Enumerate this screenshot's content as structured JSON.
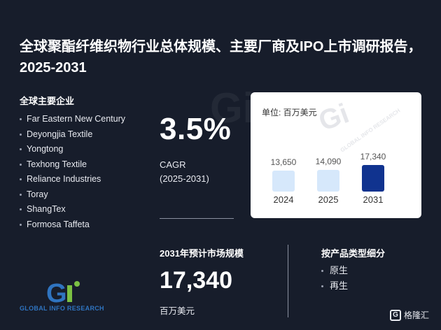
{
  "title": "全球聚酯纤维织物行业总体规模、主要厂商及IPO上市调研报告，2025-2031",
  "companies": {
    "heading": "全球主要企业",
    "items": [
      "Far Eastern New Century",
      "Deyongjia Textile",
      "Yongtong",
      "Texhong Textile",
      "Reliance Industries",
      "Toray",
      "ShangTex",
      "Formosa Taffeta"
    ]
  },
  "cagr": {
    "value": "3.5%",
    "label": "CAGR",
    "period": "(2025-2031)"
  },
  "chart": {
    "unit": "单位: 百万美元",
    "watermark": "GLOBAL INFO RESEARCH"
  },
  "chart_data": {
    "type": "bar",
    "categories": [
      "2024",
      "2025",
      "2031"
    ],
    "values": [
      13650,
      14090,
      17340
    ],
    "value_labels": [
      "13,650",
      "14,090",
      "17,340"
    ],
    "colors": [
      "#d6e8fb",
      "#d6e8fb",
      "#10338f"
    ],
    "ylabel": "单位: 百万美元",
    "title": ""
  },
  "market": {
    "heading": "2031年预计市场规模",
    "value": "17,340",
    "unit": "百万美元"
  },
  "products": {
    "heading": "按产品类型细分",
    "items": [
      "原生",
      "再生"
    ]
  },
  "logo": {
    "text": "GLOBAL INFO RESEARCH",
    "colors": {
      "blue": "#2f74c0",
      "green": "#7bc043"
    }
  },
  "badge": {
    "icon": "g-logo-icon",
    "text": "格隆汇"
  }
}
